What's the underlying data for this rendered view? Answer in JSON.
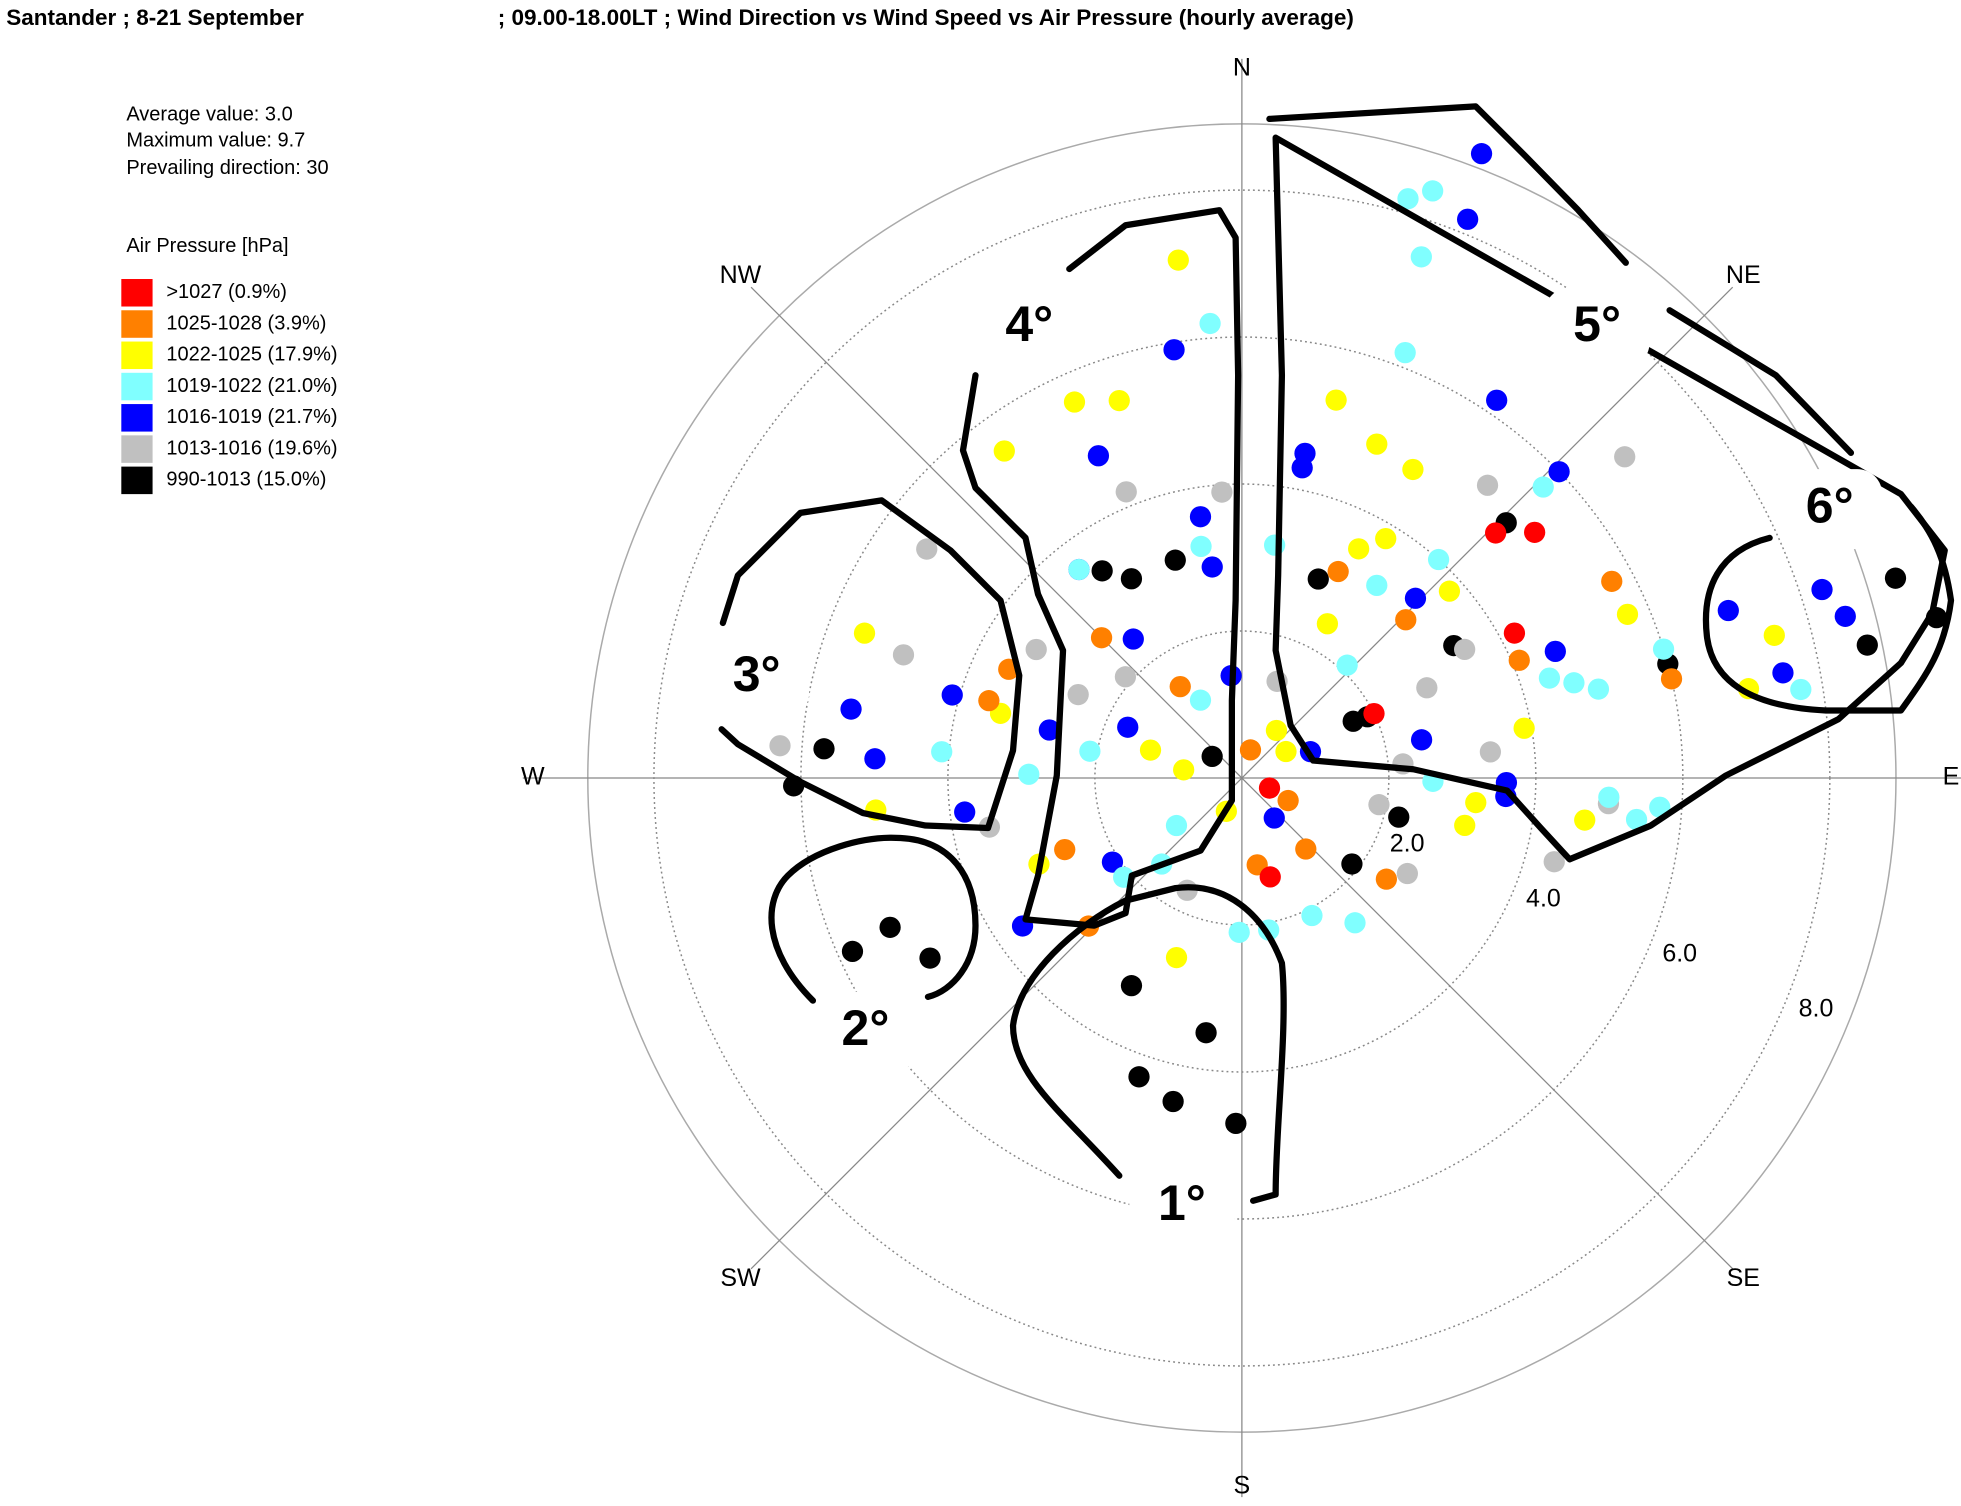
{
  "chart_data": {
    "type": "polar-scatter",
    "title": "Santander ; 8-21 September",
    "subtitle": "; 09.00-18.00LT ; Wind Direction vs Wind Speed vs Air Pressure (hourly average)",
    "stats": [
      "Average value: 3.0",
      "Maximum value: 9.7",
      "Prevailing direction: 30"
    ],
    "legend_title": "Air Pressure [hPa]",
    "rlim": [
      0,
      8.9
    ],
    "rticks": [
      {
        "value": 2,
        "label": "2.0"
      },
      {
        "value": 4,
        "label": "4.0"
      },
      {
        "value": 6,
        "label": "6.0"
      },
      {
        "value": 8,
        "label": "8.0"
      }
    ],
    "theta_ticks": [
      {
        "value": 0,
        "label": "N"
      },
      {
        "value": 45,
        "label": "NE"
      },
      {
        "value": 90,
        "label": "E"
      },
      {
        "value": 135,
        "label": "SE"
      },
      {
        "value": 180,
        "label": "S"
      },
      {
        "value": 225,
        "label": "SW"
      },
      {
        "value": 270,
        "label": "W"
      },
      {
        "value": 315,
        "label": "NW"
      }
    ],
    "annotations": [
      "1°",
      "2°",
      "3°",
      "4°",
      "5°",
      "6°"
    ],
    "series": [
      {
        "name": "990-1013 (15.0%)",
        "color": "#000000",
        "theta": [
          181,
          188,
          199,
          192,
          208,
          246,
          247,
          240,
          274,
          269,
          73,
          78,
          77,
          75,
          46,
          64,
          63,
          306,
          343,
          331,
          326,
          58,
          21,
          128,
          104
        ],
        "r": [
          4.7,
          3.5,
          4.3,
          4.5,
          3.2,
          5.8,
          5.2,
          4.9,
          5.7,
          6.1,
          9.3,
          8.7,
          9.7,
          6.0,
          5.0,
          1.9,
          1.7,
          0.5,
          3.1,
          3.1,
          3.4,
          3.4,
          2.9,
          1.9,
          2.2
        ]
      },
      {
        "name": "1013-1016 (19.6%)",
        "color": "#c0c0c0",
        "theta": [
          50,
          40,
          306,
          290,
          274,
          120,
          105,
          94,
          64,
          338,
          356,
          311,
          302,
          259,
          101,
          85,
          206,
          60,
          84,
          297,
          20
        ],
        "r": [
          6.8,
          5.2,
          5.3,
          4.9,
          6.3,
          2.6,
          4.4,
          5.0,
          2.8,
          4.2,
          3.9,
          2.1,
          3.3,
          3.5,
          1.9,
          2.2,
          1.7,
          3.5,
          3.4,
          2.5,
          1.4
        ]
      },
      {
        "name": "1016-1019 (21.7%)",
        "color": "#0000ff",
        "theta": [
          21,
          22,
          351,
          34,
          11,
          336,
          46,
          72,
          75,
          71,
          79,
          68,
          91,
          94,
          78,
          351,
          322,
          352,
          322,
          286,
          280,
          273,
          263,
          236,
          237,
          354,
          11,
          44,
          284,
          294,
          69,
          141
        ],
        "r": [
          9.1,
          8.2,
          5.9,
          6.2,
          4.5,
          4.8,
          6.0,
          8.3,
          8.5,
          7.0,
          7.5,
          4.6,
          3.6,
          3.6,
          2.5,
          3.6,
          3.6,
          2.9,
          2.4,
          4.1,
          5.4,
          5.0,
          3.8,
          3.6,
          2.1,
          1.4,
          4.3,
          3.4,
          2.7,
          1.7,
          1.0,
          0.7
        ]
      },
      {
        "name": "1019-1022 (21.0%)",
        "color": "#80ffff",
        "theta": [
          16,
          18,
          19,
          356,
          21,
          93,
          94,
          96,
          72,
          74,
          76,
          91,
          142,
          153,
          181,
          170,
          223,
          280,
          322,
          350,
          8,
          43,
          46,
          275,
          271,
          42,
          35,
          234,
          230,
          73,
          81,
          332
        ],
        "r": [
          8.2,
          8.4,
          7.5,
          6.2,
          6.2,
          5.0,
          5.7,
          5.4,
          4.4,
          4.7,
          5.0,
          2.6,
          2.5,
          2.1,
          2.1,
          2.1,
          1.6,
          2.1,
          3.6,
          3.2,
          3.2,
          2.1,
          5.7,
          4.1,
          2.9,
          4.0,
          3.2,
          1.1,
          2.1,
          6.0,
          7.7,
          1.2
        ]
      },
      {
        "name": "1022-1025 (17.9%)",
        "color": "#ffff00",
        "theta": [
          353,
          336,
          342,
          14,
          22,
          29,
          97,
          96,
          80,
          80,
          75,
          67,
          291,
          265,
          285,
          278,
          287,
          36,
          59,
          29,
          31,
          48,
          200,
          247,
          324,
          102,
          27,
          205
        ],
        "r": [
          7.1,
          5.6,
          5.4,
          5.3,
          4.9,
          4.8,
          4.7,
          3.2,
          3.9,
          7.0,
          7.5,
          5.7,
          5.5,
          5.0,
          3.4,
          0.8,
          1.3,
          0.8,
          0.7,
          2.4,
          3.8,
          3.8,
          2.6,
          3.0,
          5.5,
          3.1,
          3.5,
          0.5
        ]
      },
      {
        "name": "1025-1028 (3.9%)",
        "color": "#ff8000",
        "theta": [
          62,
          67,
          125,
          326,
          315,
          295,
          25,
          170,
          116,
          226,
          77,
          248,
          287,
          17,
          46,
          138
        ],
        "r": [
          5.7,
          4.1,
          2.4,
          1.5,
          2.7,
          3.5,
          3.1,
          1.2,
          0.7,
          2.9,
          6.0,
          2.6,
          3.6,
          0.4,
          3.1,
          1.3
        ]
      },
      {
        "name": ">1027 (0.9%)",
        "color": "#ff0000",
        "theta": [
          46,
          50,
          164,
          64,
          62,
          110
        ],
        "r": [
          4.8,
          5.2,
          1.4,
          2.0,
          4.2,
          0.4
        ]
      }
    ]
  }
}
